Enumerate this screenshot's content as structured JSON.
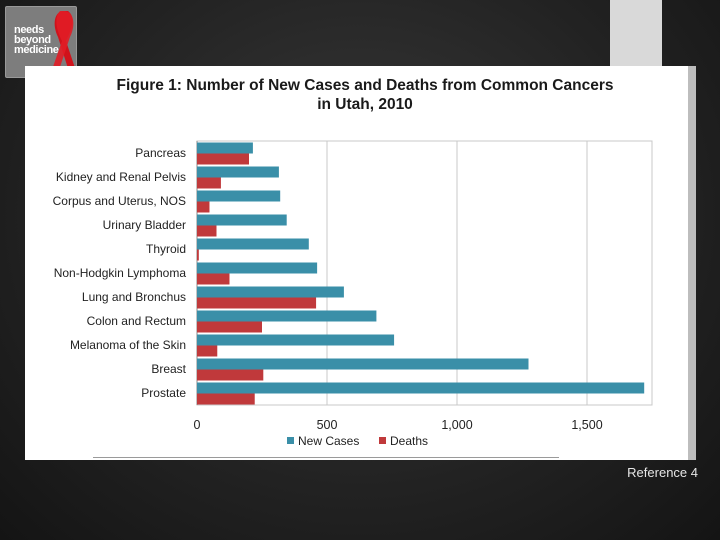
{
  "logo": {
    "text_lines": [
      "needs",
      "beyond",
      "medicine"
    ]
  },
  "footer": {
    "reference": "Reference 4"
  },
  "chart_data": {
    "type": "bar",
    "orientation": "horizontal",
    "title": "Figure 1: Number of New Cases and Deaths from Common Cancers in Utah, 2010",
    "title_lines": [
      "Figure 1: Number of New Cases and Deaths from Common Cancers",
      "in Utah, 2010"
    ],
    "categories": [
      "Pancreas",
      "Kidney and Renal Pelvis",
      "Corpus and Uterus, NOS",
      "Urinary Bladder",
      "Thyroid",
      "Non-Hodgkin Lymphoma",
      "Lung and Bronchus",
      "Colon and Rectum",
      "Melanoma of the Skin",
      "Breast",
      "Prostate"
    ],
    "series": [
      {
        "name": "New Cases",
        "color": "#3a8fa8",
        "values": [
          215,
          315,
          320,
          345,
          430,
          462,
          565,
          690,
          758,
          1275,
          1720
        ]
      },
      {
        "name": "Deaths",
        "color": "#c0393b",
        "values": [
          200,
          92,
          48,
          75,
          7,
          125,
          458,
          250,
          78,
          255,
          222
        ]
      }
    ],
    "xlim": [
      0,
      1750
    ],
    "xticks": [
      0,
      500,
      1000,
      1500
    ],
    "xtick_labels": [
      "0",
      "500",
      "1,000",
      "1,500"
    ],
    "grid": true,
    "legend": "bottom"
  }
}
